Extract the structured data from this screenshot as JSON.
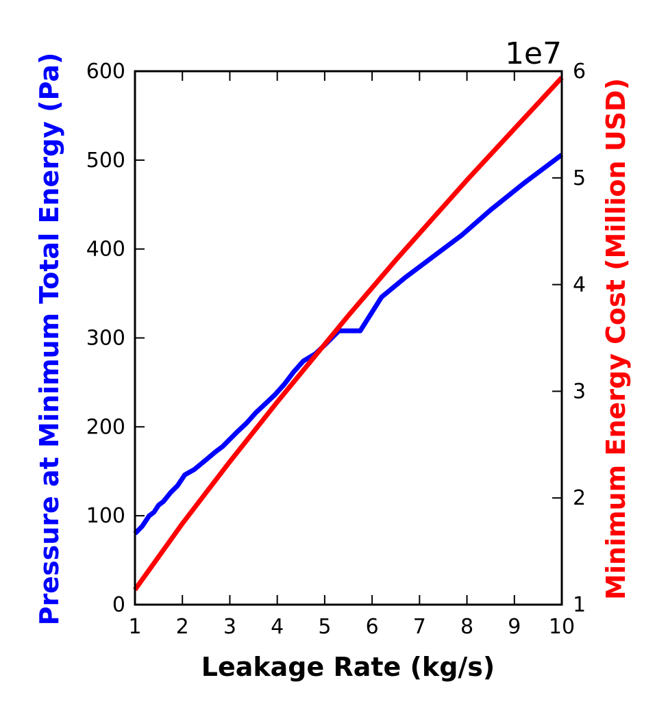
{
  "chart_data": {
    "type": "line",
    "title": "",
    "xlabel": "Leakage Rate (kg/s)",
    "ylabel_left": "Pressure at Minimum Total Energy (Pa)",
    "ylabel_right": "Minimum Energy Cost (Million USD)",
    "right_axis_offset_text": "1e7",
    "xlim": [
      1,
      10
    ],
    "ylim_left": [
      0,
      600
    ],
    "ylim_right": [
      1,
      6
    ],
    "x_ticks": [
      "1",
      "2",
      "3",
      "4",
      "5",
      "6",
      "7",
      "8",
      "9",
      "10"
    ],
    "y_ticks_left": [
      "0",
      "100",
      "200",
      "300",
      "400",
      "500",
      "600"
    ],
    "y_ticks_right": [
      "1",
      "2",
      "3",
      "4",
      "5",
      "6"
    ],
    "grid": false,
    "colors": {
      "left_series": "#0000ff",
      "right_series": "#ff0000",
      "frame": "#000000"
    },
    "series": [
      {
        "axis": "left",
        "color": "#0000ff",
        "points": [
          [
            1.0,
            80
          ],
          [
            1.15,
            88
          ],
          [
            1.3,
            100
          ],
          [
            1.4,
            104
          ],
          [
            1.5,
            112
          ],
          [
            1.6,
            116
          ],
          [
            1.75,
            126
          ],
          [
            1.9,
            134
          ],
          [
            2.05,
            146
          ],
          [
            2.25,
            152
          ],
          [
            2.5,
            163
          ],
          [
            2.7,
            172
          ],
          [
            2.85,
            178
          ],
          [
            3.0,
            186
          ],
          [
            3.15,
            194
          ],
          [
            3.35,
            204
          ],
          [
            3.55,
            216
          ],
          [
            3.75,
            226
          ],
          [
            3.95,
            236
          ],
          [
            4.15,
            248
          ],
          [
            4.35,
            262
          ],
          [
            4.55,
            274
          ],
          [
            4.8,
            282
          ],
          [
            5.0,
            292
          ],
          [
            5.3,
            308
          ],
          [
            5.75,
            308
          ],
          [
            6.2,
            346
          ],
          [
            6.7,
            368
          ],
          [
            7.3,
            392
          ],
          [
            7.9,
            416
          ],
          [
            8.5,
            444
          ],
          [
            9.2,
            474
          ],
          [
            10.0,
            506
          ]
        ]
      },
      {
        "axis": "right",
        "color": "#ff0000",
        "points": [
          [
            1.0,
            1.14
          ],
          [
            1.5,
            1.45
          ],
          [
            2.0,
            1.76
          ],
          [
            2.5,
            2.05
          ],
          [
            3.0,
            2.34
          ],
          [
            3.5,
            2.62
          ],
          [
            4.0,
            2.9
          ],
          [
            4.5,
            3.17
          ],
          [
            5.0,
            3.44
          ],
          [
            5.5,
            3.71
          ],
          [
            6.0,
            3.97
          ],
          [
            6.5,
            4.23
          ],
          [
            7.0,
            4.48
          ],
          [
            7.5,
            4.73
          ],
          [
            8.0,
            4.98
          ],
          [
            8.5,
            5.22
          ],
          [
            9.0,
            5.46
          ],
          [
            9.5,
            5.7
          ],
          [
            10.0,
            5.94
          ]
        ]
      }
    ]
  }
}
